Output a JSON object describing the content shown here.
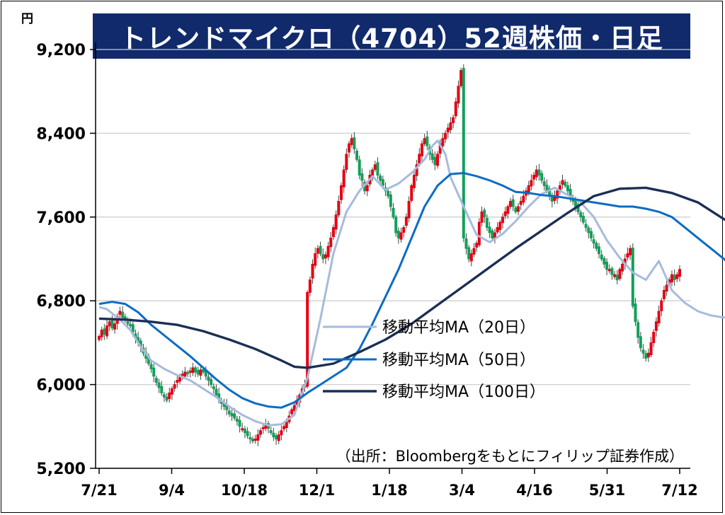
{
  "title": "トレンドマイクロ（4704）52週株価・日足",
  "unit": "円",
  "source": "（出所：Bloombergをもとにフィリップ証券作成）",
  "chart_data": {
    "type": "candlestick",
    "title": "トレンドマイクロ（4704）52週株価・日足",
    "ylabel": "円",
    "ylim": [
      5200,
      9200
    ],
    "yticks": [
      5200,
      6000,
      6800,
      7600,
      8400,
      9200
    ],
    "ytick_labels": [
      "5,200",
      "6,000",
      "6,800",
      "7,600",
      "8,400",
      "9,200"
    ],
    "xticks": [
      "7/21",
      "9/4",
      "10/18",
      "12/1",
      "1/18",
      "3/4",
      "4/16",
      "5/31",
      "7/12"
    ],
    "grid": true,
    "legend_placement": "center-right",
    "colors": {
      "up": "#e60012",
      "down": "#13a05a",
      "ma20": "#a6bbdd",
      "ma50": "#0b6cc4",
      "ma100": "#1b2f55",
      "title_bg": "#102a6b"
    },
    "candles_close": [
      6460,
      6520,
      6480,
      6560,
      6600,
      6540,
      6580,
      6650,
      6700,
      6640,
      6620,
      6580,
      6560,
      6500,
      6450,
      6400,
      6360,
      6300,
      6250,
      6200,
      6150,
      6080,
      6020,
      5970,
      5920,
      5880,
      5850,
      5920,
      5960,
      6000,
      6040,
      6080,
      6100,
      6120,
      6110,
      6130,
      6160,
      6120,
      6100,
      6140,
      6120,
      6080,
      6040,
      6000,
      5960,
      5900,
      5860,
      5820,
      5790,
      5760,
      5720,
      5700,
      5680,
      5650,
      5600,
      5580,
      5540,
      5510,
      5480,
      5460,
      5480,
      5520,
      5560,
      5590,
      5620,
      5580,
      5540,
      5500,
      5480,
      5520,
      5560,
      5600,
      5640,
      5700,
      5760,
      5800,
      5850,
      5900,
      5960,
      6000,
      6880,
      7000,
      7150,
      7250,
      7300,
      7250,
      7200,
      7240,
      7320,
      7400,
      7500,
      7620,
      7750,
      7900,
      8050,
      8200,
      8300,
      8350,
      8250,
      8150,
      8000,
      7950,
      7850,
      7900,
      8000,
      8050,
      8100,
      8000,
      7950,
      7900,
      7850,
      7800,
      7700,
      7600,
      7450,
      7400,
      7450,
      7500,
      7600,
      7750,
      7900,
      8000,
      8100,
      8200,
      8300,
      8350,
      8280,
      8200,
      8150,
      8100,
      8200,
      8300,
      8350,
      8400,
      8450,
      8500,
      8550,
      8700,
      8850,
      9000,
      7400,
      7300,
      7200,
      7250,
      7300,
      7350,
      7550,
      7650,
      7600,
      7500,
      7450,
      7400,
      7450,
      7500,
      7550,
      7600,
      7650,
      7700,
      7750,
      7700,
      7650,
      7700,
      7750,
      7800,
      7850,
      7900,
      7950,
      8000,
      8050,
      8000,
      7950,
      7900,
      7850,
      7800,
      7750,
      7800,
      7850,
      7900,
      7950,
      7900,
      7850,
      7800,
      7750,
      7700,
      7650,
      7600,
      7550,
      7500,
      7450,
      7400,
      7350,
      7300,
      7250,
      7200,
      7150,
      7100,
      7100,
      7050,
      7050,
      7000,
      7100,
      7150,
      7200,
      7250,
      7300,
      6750,
      6600,
      6450,
      6350,
      6300,
      6250,
      6300,
      6400,
      6500,
      6600,
      6700,
      6800,
      6900,
      6950,
      7000,
      7050,
      7000,
      7050,
      7100
    ],
    "series": [
      {
        "name": "移動平均MA（20日）",
        "x": [
          0,
          3,
          5,
          8,
          12,
          16,
          20,
          25,
          30,
          35,
          40,
          45,
          50,
          55,
          60,
          65,
          70,
          75,
          80,
          85,
          90,
          95,
          100,
          105,
          110,
          115,
          120,
          125,
          128,
          130,
          133,
          135,
          140,
          145,
          150,
          155,
          160,
          165,
          170,
          175,
          180,
          185,
          190,
          195,
          200,
          205,
          210,
          215,
          220,
          225,
          230,
          235,
          240,
          244
        ],
        "values": [
          6740,
          6720,
          6680,
          6620,
          6520,
          6360,
          6230,
          6150,
          6090,
          6040,
          5960,
          5880,
          5790,
          5710,
          5650,
          5610,
          5620,
          5710,
          6060,
          6630,
          7250,
          7650,
          7850,
          7990,
          7860,
          7920,
          8020,
          8150,
          8280,
          8330,
          8200,
          7980,
          7700,
          7430,
          7360,
          7440,
          7560,
          7700,
          7820,
          7880,
          7810,
          7740,
          7600,
          7380,
          7210,
          7070,
          7000,
          7180,
          6900,
          6780,
          6700,
          6660,
          6640,
          6640
        ]
      },
      {
        "name": "移動平均MA（50日）",
        "x": [
          0,
          5,
          10,
          15,
          20,
          25,
          30,
          35,
          40,
          45,
          50,
          55,
          60,
          65,
          70,
          75,
          80,
          85,
          90,
          95,
          100,
          105,
          110,
          115,
          120,
          125,
          130,
          135,
          140,
          145,
          150,
          155,
          160,
          165,
          170,
          175,
          180,
          185,
          190,
          195,
          200,
          205,
          210,
          215,
          220,
          225,
          230,
          235,
          240,
          244
        ],
        "values": [
          6770,
          6790,
          6770,
          6690,
          6570,
          6470,
          6370,
          6270,
          6160,
          6050,
          5950,
          5870,
          5820,
          5790,
          5780,
          5830,
          5920,
          6000,
          6080,
          6160,
          6340,
          6580,
          6840,
          7100,
          7400,
          7700,
          7900,
          8010,
          8020,
          7990,
          7950,
          7900,
          7840,
          7830,
          7810,
          7800,
          7780,
          7760,
          7740,
          7720,
          7700,
          7700,
          7680,
          7650,
          7600,
          7500,
          7400,
          7300,
          7200,
          7100
        ]
      },
      {
        "name": "移動平均MA（100日）",
        "x": [
          0,
          10,
          20,
          30,
          40,
          50,
          60,
          70,
          75,
          80,
          90,
          100,
          110,
          120,
          130,
          140,
          150,
          160,
          170,
          180,
          190,
          200,
          210,
          220,
          230,
          240,
          244
        ],
        "values": [
          6630,
          6620,
          6600,
          6570,
          6510,
          6430,
          6340,
          6230,
          6170,
          6160,
          6200,
          6310,
          6430,
          6580,
          6760,
          6940,
          7120,
          7300,
          7470,
          7640,
          7800,
          7870,
          7880,
          7830,
          7740,
          7580,
          7540
        ]
      }
    ]
  }
}
